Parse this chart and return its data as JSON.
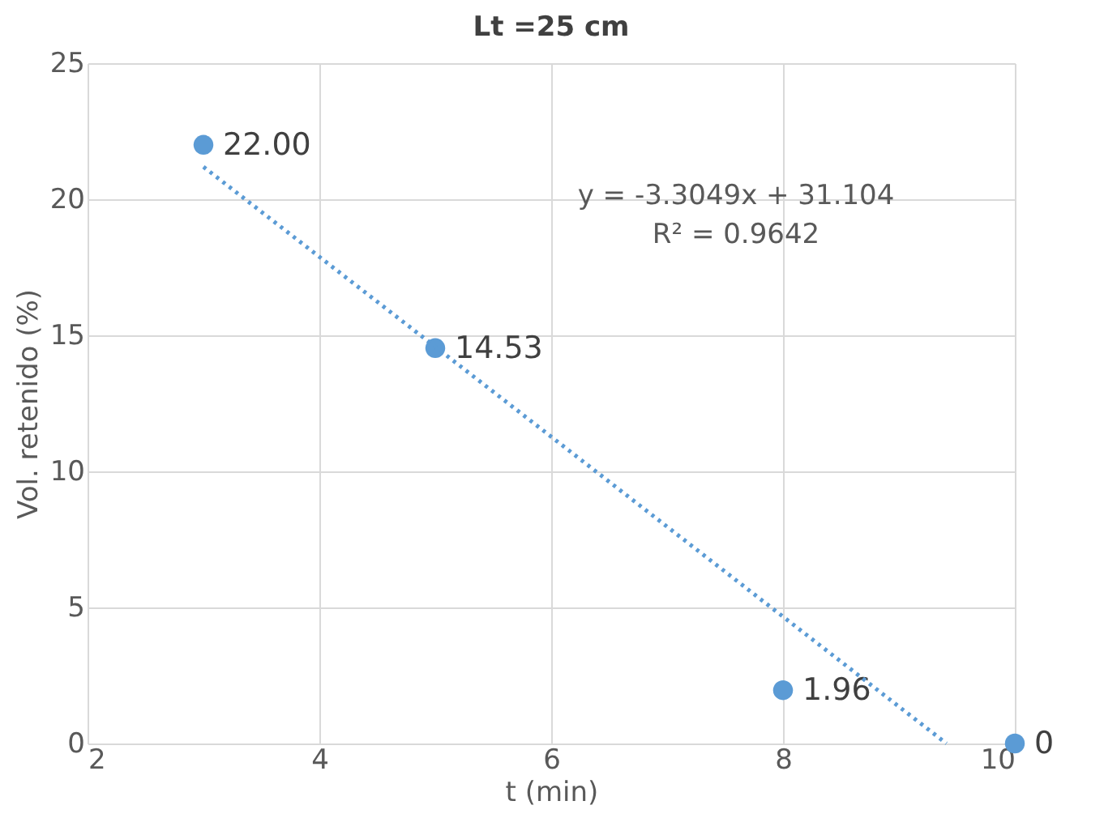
{
  "chart_data": {
    "type": "scatter",
    "title": "Lt =25 cm",
    "xlabel": "t (min)",
    "ylabel": "Vol. retenido (%)",
    "xlim": [
      2,
      10
    ],
    "xticks": [
      2,
      4,
      6,
      8,
      10
    ],
    "ylim": [
      0,
      25
    ],
    "yticks": [
      0,
      5,
      10,
      15,
      20,
      25
    ],
    "grid": true,
    "series": [
      {
        "color": "#5b9bd5",
        "marker": "circle",
        "x": [
          3,
          5,
          8,
          10
        ],
        "values": [
          22.0,
          14.53,
          1.96,
          0
        ],
        "value_labels": [
          "22.00",
          "14.53",
          "1.96",
          "0"
        ]
      },
      {
        "type": "line",
        "color": "#5b9bd5",
        "line_style": "dotted",
        "marker": "none",
        "x": [
          3,
          9.41
        ],
        "values": [
          21.19,
          0
        ]
      }
    ],
    "annotations": [
      "y = -3.3049x + 31.104",
      "R² = 0.9642"
    ]
  }
}
